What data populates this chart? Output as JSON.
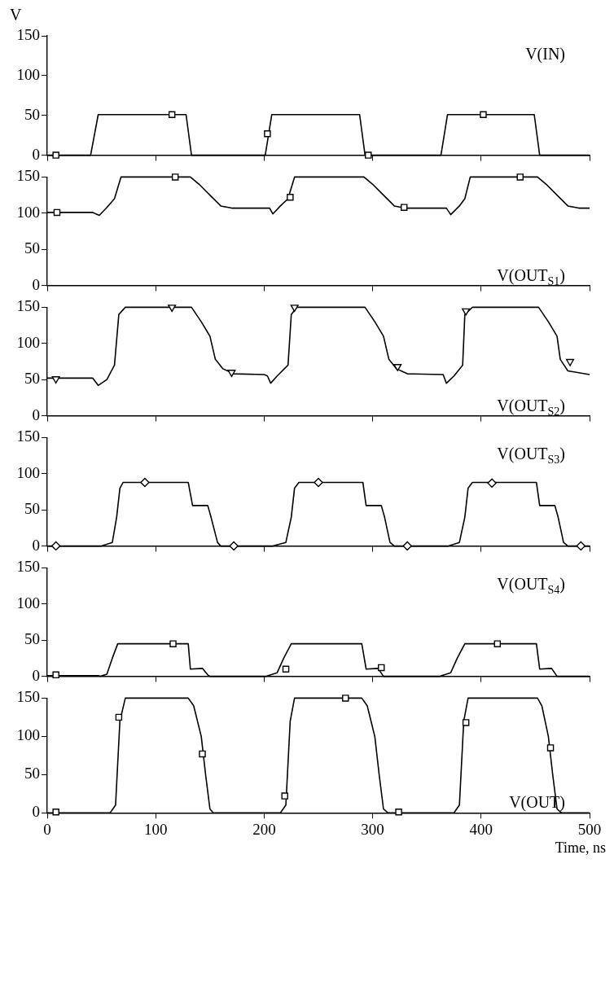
{
  "chart_data": [
    {
      "type": "line",
      "ylabel": "V",
      "xlim": [
        0,
        500
      ],
      "xticks": [
        0,
        100,
        200,
        300,
        400,
        500
      ],
      "ylim": [
        0,
        150
      ],
      "yticks": [
        0,
        50,
        100,
        150
      ],
      "tick_labels": "y",
      "grid": false,
      "legend": false,
      "series": [
        {
          "name": "V(IN)",
          "color": "#000000",
          "marker": "none",
          "x": [
            0,
            40,
            47,
            128,
            133,
            201,
            207,
            288,
            293,
            363,
            369,
            449,
            454,
            500
          ],
          "values": [
            0,
            0,
            51,
            51,
            0,
            0,
            51,
            51,
            0,
            0,
            51,
            51,
            0,
            0
          ]
        },
        {
          "type": "scatter",
          "color": "#000000",
          "marker": "square",
          "x": [
            8,
            115,
            203,
            296,
            402
          ],
          "values": [
            0,
            51,
            27,
            0,
            51
          ]
        }
      ]
    },
    {
      "type": "line",
      "xlim": [
        0,
        500
      ],
      "xticks": [
        0,
        100,
        200,
        300,
        400,
        500
      ],
      "ylim": [
        0,
        150
      ],
      "yticks": [
        0,
        50,
        100,
        150
      ],
      "tick_labels": "y",
      "grid": false,
      "legend": false,
      "series": [
        {
          "name": "V(OUT$_{S1}$)",
          "color": "#000000",
          "marker": "none",
          "x": [
            0,
            42,
            48,
            55,
            62,
            68,
            132,
            140,
            150,
            160,
            170,
            205,
            208,
            215,
            222,
            228,
            292,
            300,
            310,
            320,
            330,
            368,
            372,
            380,
            385,
            390,
            452,
            460,
            470,
            480,
            490,
            500
          ],
          "values": [
            101,
            101,
            97,
            108,
            120,
            150,
            150,
            140,
            125,
            110,
            107,
            107,
            99,
            110,
            120,
            150,
            150,
            140,
            125,
            110,
            107,
            107,
            98,
            110,
            120,
            150,
            150,
            140,
            125,
            110,
            107,
            107
          ]
        },
        {
          "type": "scatter",
          "color": "#000000",
          "marker": "square",
          "x": [
            9,
            118,
            224,
            329,
            436
          ],
          "values": [
            101,
            150,
            122,
            108,
            150
          ]
        }
      ]
    },
    {
      "type": "line",
      "xlim": [
        0,
        500
      ],
      "xticks": [
        0,
        100,
        200,
        300,
        400,
        500
      ],
      "ylim": [
        0,
        150
      ],
      "yticks": [
        0,
        50,
        100,
        150
      ],
      "tick_labels": "y",
      "grid": false,
      "legend": false,
      "series": [
        {
          "name": "V(OUT$_{S2}$)",
          "color": "#000000",
          "marker": "none",
          "x": [
            0,
            42,
            47,
            55,
            62,
            66,
            72,
            133,
            142,
            150,
            155,
            162,
            172,
            200,
            203,
            206,
            212,
            222,
            225,
            230,
            293,
            302,
            310,
            315,
            322,
            332,
            365,
            368,
            375,
            383,
            385,
            392,
            453,
            462,
            470,
            473,
            480,
            500
          ],
          "values": [
            52,
            52,
            42,
            50,
            70,
            140,
            150,
            150,
            130,
            110,
            78,
            65,
            58,
            57,
            55,
            45,
            55,
            70,
            140,
            150,
            150,
            130,
            110,
            78,
            65,
            58,
            57,
            45,
            55,
            70,
            140,
            150,
            150,
            130,
            110,
            78,
            62,
            57
          ]
        },
        {
          "type": "scatter",
          "color": "#000000",
          "marker": "triangle",
          "x": [
            8,
            115,
            170,
            228,
            323,
            386,
            482
          ],
          "values": [
            51,
            150,
            60,
            150,
            68,
            145,
            75
          ]
        }
      ]
    },
    {
      "type": "line",
      "xlim": [
        0,
        500
      ],
      "xticks": [
        0,
        100,
        200,
        300,
        400,
        500
      ],
      "ylim": [
        0,
        150
      ],
      "yticks": [
        0,
        50,
        100,
        150
      ],
      "tick_labels": "y",
      "grid": false,
      "legend": false,
      "series": [
        {
          "name": "V(OUT$_{S3}$)",
          "color": "#000000",
          "marker": "none",
          "x": [
            0,
            47,
            50,
            60,
            64,
            67,
            70,
            130,
            134,
            148,
            151,
            157,
            160,
            207,
            208,
            220,
            225,
            228,
            232,
            291,
            294,
            308,
            311,
            316,
            320,
            368,
            370,
            380,
            385,
            388,
            392,
            451,
            454,
            468,
            471,
            476,
            480,
            500
          ],
          "values": [
            0,
            0,
            0,
            5,
            40,
            80,
            88,
            88,
            56,
            56,
            40,
            5,
            0,
            0,
            0,
            5,
            40,
            80,
            88,
            88,
            56,
            56,
            40,
            5,
            0,
            0,
            0,
            5,
            40,
            80,
            88,
            88,
            56,
            56,
            40,
            5,
            0,
            0
          ]
        },
        {
          "type": "scatter",
          "color": "#000000",
          "marker": "diamond",
          "x": [
            8,
            90,
            172,
            250,
            332,
            410,
            492
          ],
          "values": [
            0,
            88,
            0,
            88,
            0,
            87,
            0
          ]
        }
      ]
    },
    {
      "type": "line",
      "xlim": [
        0,
        500
      ],
      "xticks": [
        0,
        100,
        200,
        300,
        400,
        500
      ],
      "ylim": [
        0,
        150
      ],
      "yticks": [
        0,
        50,
        100,
        150
      ],
      "tick_labels": "y",
      "grid": false,
      "legend": false,
      "series": [
        {
          "name": "V(OUT$_{S4}$)",
          "color": "#000000",
          "marker": "none",
          "x": [
            0,
            47,
            49,
            55,
            60,
            65,
            130,
            132,
            143,
            148,
            150,
            202,
            212,
            218,
            225,
            290,
            294,
            305,
            310,
            362,
            372,
            378,
            385,
            451,
            454,
            465,
            470,
            500
          ],
          "values": [
            1,
            1,
            0,
            3,
            25,
            45,
            45,
            10,
            11,
            2,
            0,
            0,
            5,
            25,
            45,
            45,
            10,
            11,
            0,
            0,
            5,
            25,
            45,
            45,
            10,
            11,
            0,
            0
          ]
        },
        {
          "type": "scatter",
          "color": "#000000",
          "marker": "square",
          "x": [
            8,
            116,
            220,
            308,
            415
          ],
          "values": [
            2,
            45,
            10,
            12,
            45
          ]
        }
      ]
    },
    {
      "type": "line",
      "xlabel": "Time, ns",
      "xlim": [
        0,
        500
      ],
      "xticks": [
        0,
        100,
        200,
        300,
        400,
        500
      ],
      "ylim": [
        0,
        150
      ],
      "yticks": [
        0,
        50,
        100,
        150
      ],
      "grid": false,
      "legend": false,
      "series": [
        {
          "name": "V(OUT)",
          "color": "#000000",
          "marker": "none",
          "x": [
            0,
            58,
            63,
            67,
            72,
            130,
            135,
            142,
            146,
            150,
            153,
            215,
            220,
            224,
            228,
            290,
            295,
            302,
            306,
            310,
            314,
            375,
            380,
            384,
            388,
            452,
            456,
            462,
            466,
            470,
            474,
            500
          ],
          "values": [
            0,
            0,
            10,
            120,
            150,
            150,
            140,
            100,
            50,
            5,
            0,
            0,
            10,
            120,
            150,
            150,
            140,
            100,
            50,
            5,
            0,
            0,
            10,
            120,
            150,
            150,
            140,
            100,
            50,
            5,
            0,
            0
          ]
        },
        {
          "type": "scatter",
          "color": "#000000",
          "marker": "square",
          "x": [
            8,
            66,
            143,
            219,
            275,
            324,
            386,
            464
          ],
          "values": [
            1,
            125,
            77,
            22,
            150,
            1,
            118,
            85
          ]
        }
      ]
    }
  ]
}
